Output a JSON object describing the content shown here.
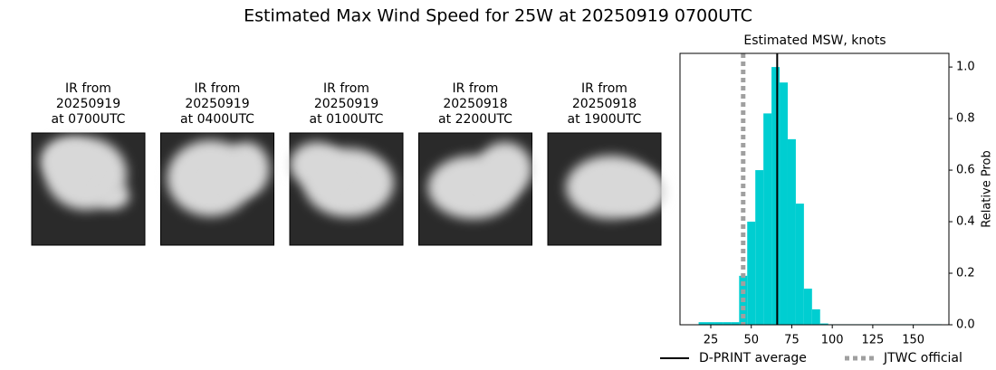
{
  "title": "Estimated Max Wind Speed for 25W at 20250919 0700UTC",
  "images": [
    {
      "lines": [
        "IR from",
        "20250919",
        "at 0700UTC"
      ]
    },
    {
      "lines": [
        "IR from",
        "20250919",
        "at 0400UTC"
      ]
    },
    {
      "lines": [
        "IR from",
        "20250919",
        "at 0100UTC"
      ]
    },
    {
      "lines": [
        "IR from",
        "20250918",
        "at 2200UTC"
      ]
    },
    {
      "lines": [
        "IR from",
        "20250918",
        "at 1900UTC"
      ]
    }
  ],
  "chart_data": {
    "type": "histogram",
    "title": "Estimated MSW, knots",
    "y_label": "Relative Prob",
    "bins": [
      17.5,
      22.5,
      27.5,
      32.5,
      37.5,
      42.5,
      47.5,
      52.5,
      57.5,
      62.5,
      67.5,
      72.5,
      77.5,
      82.5,
      87.5,
      92.5,
      97.5,
      102.5,
      107.5,
      112.5,
      117.5,
      122.5,
      127.5,
      132.5,
      137.5,
      142.5,
      147.5,
      152.5,
      157.5,
      162.5,
      167.5
    ],
    "counts": [
      0.01,
      0.01,
      0.01,
      0.01,
      0.01,
      0.19,
      0.4,
      0.6,
      0.82,
      1.0,
      0.94,
      0.72,
      0.47,
      0.14,
      0.06,
      0.005,
      0.002,
      0.002,
      0.002,
      0.002,
      0.002,
      0.002,
      0.002,
      0.002,
      0.002,
      0.002,
      0.002,
      0.002,
      0.002,
      0.002
    ],
    "color": "#00ced1",
    "xlim": [
      6,
      172
    ],
    "ylim": [
      0,
      1.053
    ],
    "xticks": [
      25,
      50,
      75,
      100,
      125,
      150
    ],
    "yticks": [
      {
        "value": 0,
        "label": "0.0"
      },
      {
        "value": 0.2,
        "label": "0.2"
      },
      {
        "value": 0.4,
        "label": "0.4"
      },
      {
        "value": 0.6,
        "label": "0.6"
      },
      {
        "value": 0.8,
        "label": "0.8"
      },
      {
        "value": 1.0,
        "label": "1.0"
      }
    ],
    "reference_lines": [
      {
        "name": "D-PRINT average",
        "value": 66,
        "color": "#000000",
        "style": "solid"
      },
      {
        "name": "JTWC official",
        "value": 45,
        "color": "#a0a0a0",
        "style": "dotted"
      }
    ]
  }
}
